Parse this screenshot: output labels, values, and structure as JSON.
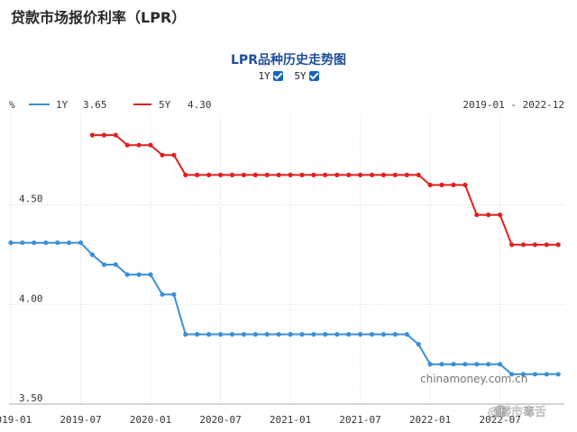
{
  "page_title": "贷款市场报价利率（LPR）",
  "watermark": "chinamoney.com.cn",
  "corner_brand": "@楼市毒舌",
  "toggles": [
    {
      "label": "1Y",
      "checked": true
    },
    {
      "label": "5Y",
      "checked": true
    }
  ],
  "legend": [
    {
      "name": "1Y",
      "value": "3.65",
      "color": "#3a8fd8"
    },
    {
      "name": "5Y",
      "value": "4.30",
      "color": "#e02020"
    }
  ],
  "date_range": "2019-01 - 2022-12",
  "chart_data": {
    "type": "line",
    "title": "LPR品种历史走势图",
    "ylabel": "%",
    "xlabel": "",
    "ylim": [
      3.5,
      4.95
    ],
    "yticks": [
      "3.50",
      "4.00",
      "4.50"
    ],
    "xticks": [
      "2019-01",
      "2019-07",
      "2020-01",
      "2020-07",
      "2021-01",
      "2021-07",
      "2022-01",
      "2022-07"
    ],
    "grid": true,
    "series": [
      {
        "name": "1Y",
        "color": "#3a8fd8",
        "x": [
          "2019-01",
          "2019-02",
          "2019-03",
          "2019-04",
          "2019-05",
          "2019-06",
          "2019-07",
          "2019-08",
          "2019-09",
          "2019-10",
          "2019-11",
          "2019-12",
          "2020-01",
          "2020-02",
          "2020-03",
          "2020-04",
          "2020-05",
          "2020-06",
          "2020-07",
          "2020-08",
          "2020-09",
          "2020-10",
          "2020-11",
          "2020-12",
          "2021-01",
          "2021-02",
          "2021-03",
          "2021-04",
          "2021-05",
          "2021-06",
          "2021-07",
          "2021-08",
          "2021-09",
          "2021-10",
          "2021-11",
          "2021-12",
          "2022-01",
          "2022-02",
          "2022-03",
          "2022-04",
          "2022-05",
          "2022-06",
          "2022-07",
          "2022-08",
          "2022-09",
          "2022-10",
          "2022-11",
          "2022-12"
        ],
        "values": [
          4.31,
          4.31,
          4.31,
          4.31,
          4.31,
          4.31,
          4.31,
          4.25,
          4.2,
          4.2,
          4.15,
          4.15,
          4.15,
          4.05,
          4.05,
          3.85,
          3.85,
          3.85,
          3.85,
          3.85,
          3.85,
          3.85,
          3.85,
          3.85,
          3.85,
          3.85,
          3.85,
          3.85,
          3.85,
          3.85,
          3.85,
          3.85,
          3.85,
          3.85,
          3.85,
          3.8,
          3.7,
          3.7,
          3.7,
          3.7,
          3.7,
          3.7,
          3.7,
          3.65,
          3.65,
          3.65,
          3.65,
          3.65
        ]
      },
      {
        "name": "5Y",
        "color": "#e02020",
        "x": [
          "2019-08",
          "2019-09",
          "2019-10",
          "2019-11",
          "2019-12",
          "2020-01",
          "2020-02",
          "2020-03",
          "2020-04",
          "2020-05",
          "2020-06",
          "2020-07",
          "2020-08",
          "2020-09",
          "2020-10",
          "2020-11",
          "2020-12",
          "2021-01",
          "2021-02",
          "2021-03",
          "2021-04",
          "2021-05",
          "2021-06",
          "2021-07",
          "2021-08",
          "2021-09",
          "2021-10",
          "2021-11",
          "2021-12",
          "2022-01",
          "2022-02",
          "2022-03",
          "2022-04",
          "2022-05",
          "2022-06",
          "2022-07",
          "2022-08",
          "2022-09",
          "2022-10",
          "2022-11",
          "2022-12"
        ],
        "values": [
          4.85,
          4.85,
          4.85,
          4.8,
          4.8,
          4.8,
          4.75,
          4.75,
          4.65,
          4.65,
          4.65,
          4.65,
          4.65,
          4.65,
          4.65,
          4.65,
          4.65,
          4.65,
          4.65,
          4.65,
          4.65,
          4.65,
          4.65,
          4.65,
          4.65,
          4.65,
          4.65,
          4.65,
          4.65,
          4.6,
          4.6,
          4.6,
          4.6,
          4.45,
          4.45,
          4.45,
          4.3,
          4.3,
          4.3,
          4.3,
          4.3
        ]
      }
    ]
  }
}
